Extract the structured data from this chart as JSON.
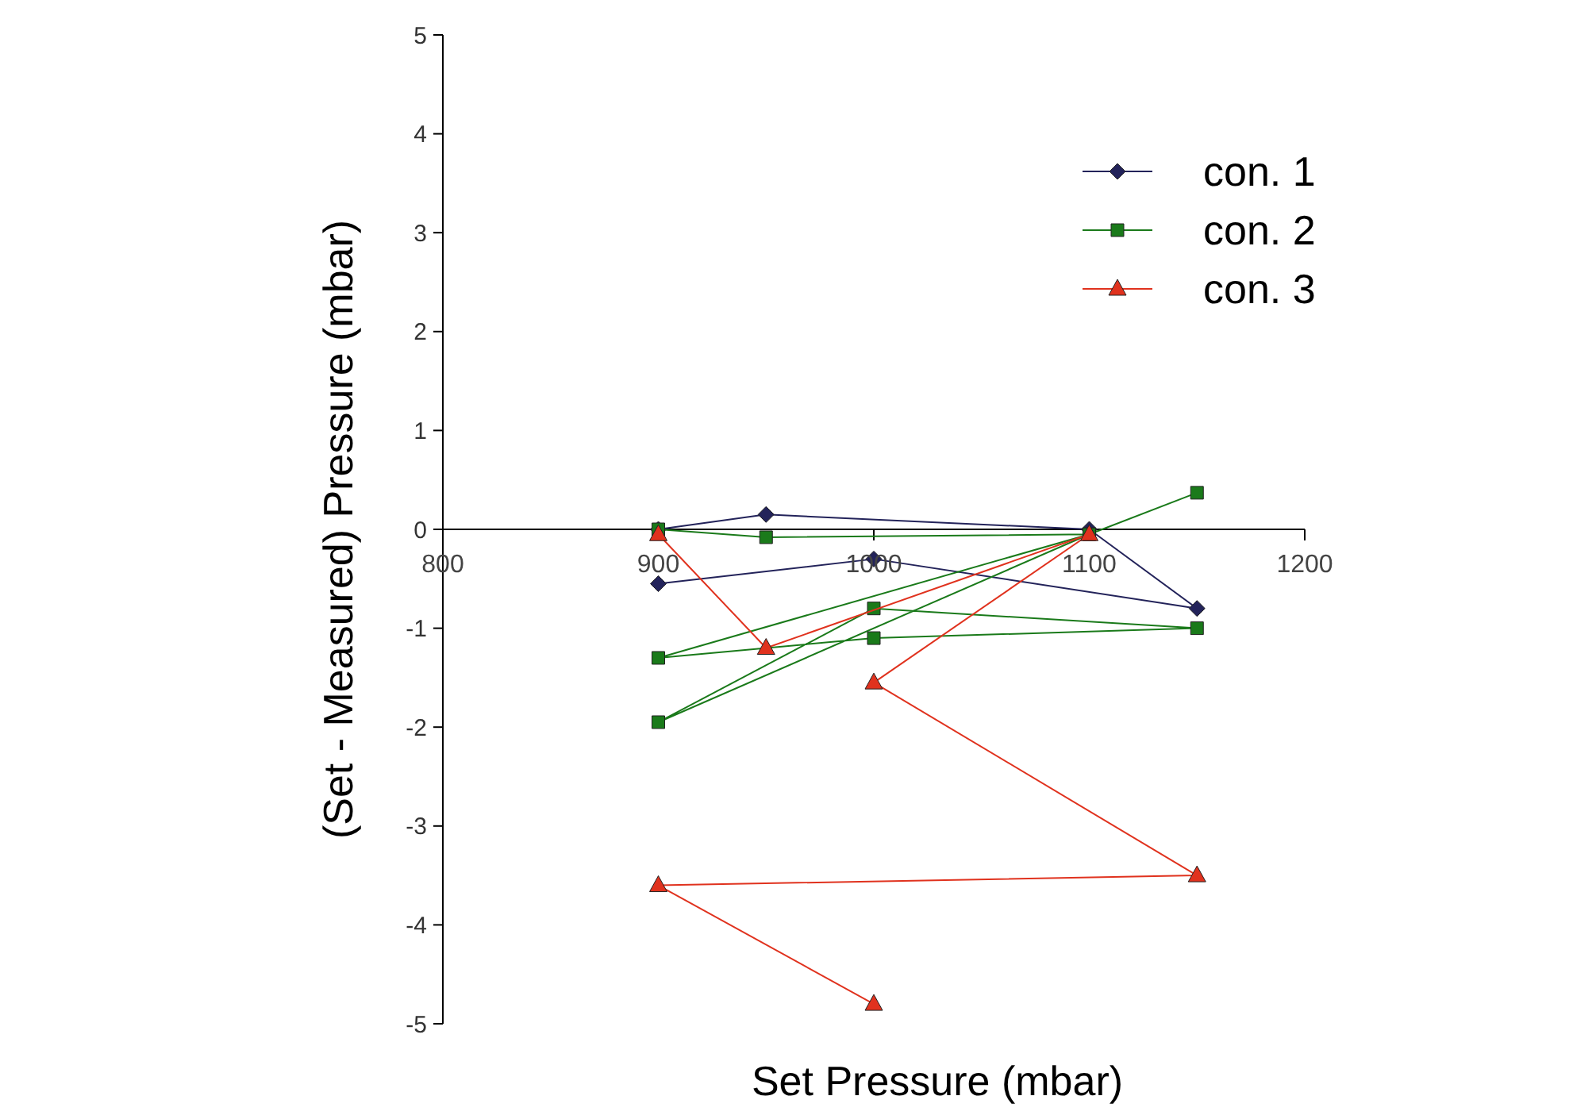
{
  "chart_data": {
    "type": "line",
    "xlabel": "Set Pressure (mbar)",
    "ylabel": "(Set - Measured) Pressure (mbar)",
    "xlim": [
      800,
      1200
    ],
    "xticks": [
      800,
      900,
      1000,
      1100,
      1200
    ],
    "ylim": [
      -5,
      5
    ],
    "yticks": [
      -5,
      -4,
      -3,
      -2,
      -1,
      0,
      1,
      2,
      3,
      4,
      5
    ],
    "grid": false,
    "legend": "top right",
    "line_style": "solid",
    "series": [
      {
        "name": "con. 1",
        "color": "#23235a",
        "marker": "diamond",
        "x": [
          900,
          950,
          1100,
          1150,
          1000,
          900
        ],
        "values": [
          0,
          0.15,
          0,
          -0.8,
          -0.3,
          -0.55
        ]
      },
      {
        "name": "con. 2",
        "color": "#1a7a1a",
        "marker": "square",
        "x": [
          900,
          950,
          1100,
          900,
          1000,
          1150,
          1000,
          900,
          1100,
          1150
        ],
        "values": [
          0,
          -0.08,
          -0.05,
          -1.3,
          -1.1,
          -1.0,
          -0.8,
          -1.95,
          -0.05,
          0.37
        ]
      },
      {
        "name": "con. 3",
        "color": "#e0321e",
        "marker": "triangle",
        "x": [
          900,
          950,
          1100,
          1000,
          1150,
          900,
          1000
        ],
        "values": [
          -0.05,
          -1.2,
          -0.05,
          -1.55,
          -3.5,
          -3.6,
          -4.8
        ]
      }
    ]
  }
}
